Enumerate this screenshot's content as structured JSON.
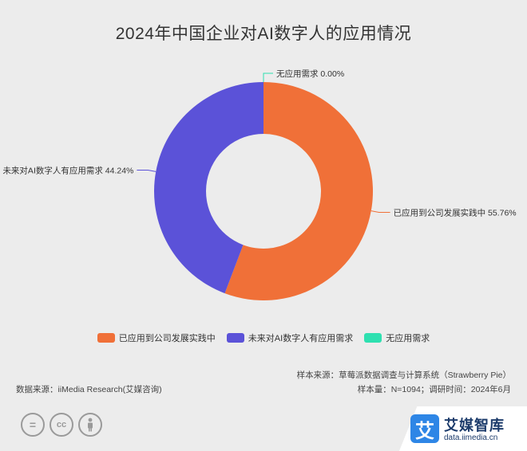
{
  "chart_data": {
    "type": "pie",
    "title": "2024年中国企业对AI数字人的应用情况",
    "donut": true,
    "slices": [
      {
        "label": "已应用到公司发展实践中",
        "value": 55.76,
        "value_text": "55.76%",
        "color": "#f07038"
      },
      {
        "label": "未来对AI数字人有应用需求",
        "value": 44.24,
        "value_text": "44.24%",
        "color": "#5b52d8"
      },
      {
        "label": "无应用需求",
        "value": 0.0,
        "value_text": "0.00%",
        "color": "#2ee0b0"
      }
    ],
    "legend_position": "bottom"
  },
  "footer": {
    "data_source": "数据来源：iiMedia Research(艾媒咨询)",
    "sample_source": "样本来源：草莓派数据调查与计算系统（Strawberry Pie）",
    "sample_info": "样本量：N=1094；调研时间：2024年6月"
  },
  "icons": [
    "equals-icon",
    "cc-icon",
    "person-icon"
  ],
  "brand": {
    "logo_char": "艾",
    "name": "艾媒智库",
    "url": "data.iimedia.cn"
  }
}
